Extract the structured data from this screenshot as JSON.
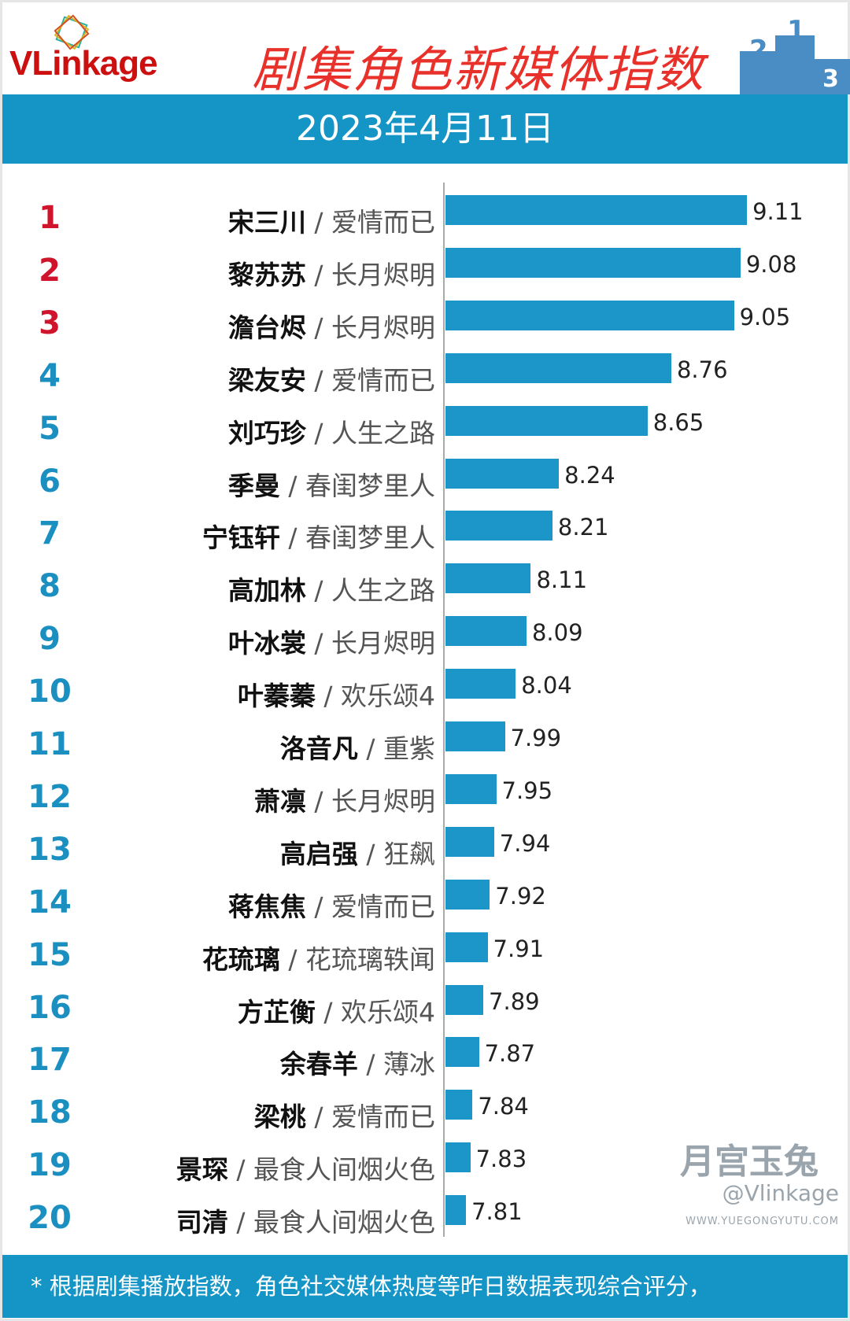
{
  "header": {
    "logo": "VLinkage",
    "title": "剧集角色新媒体指数",
    "date": "2023年4月11日"
  },
  "colors": {
    "bar": "#1c96c8",
    "rank_top": "#d0142b",
    "rank_other": "#1a8fc0",
    "band": "#1595c6"
  },
  "chart_data": {
    "type": "bar",
    "orientation": "horizontal",
    "title": "剧集角色新媒体指数",
    "subtitle": "2023年4月11日",
    "items": [
      {
        "rank": "1",
        "name": "宋三川",
        "show": "爱情而已",
        "value": 9.11
      },
      {
        "rank": "2",
        "name": "黎苏苏",
        "show": "长月烬明",
        "value": 9.08
      },
      {
        "rank": "3",
        "name": "澹台烬",
        "show": "长月烬明",
        "value": 9.05
      },
      {
        "rank": "4",
        "name": "梁友安",
        "show": "爱情而已",
        "value": 8.76
      },
      {
        "rank": "5",
        "name": "刘巧珍",
        "show": "人生之路",
        "value": 8.65
      },
      {
        "rank": "6",
        "name": "季曼",
        "show": "春闺梦里人",
        "value": 8.24
      },
      {
        "rank": "7",
        "name": "宁钰轩",
        "show": "春闺梦里人",
        "value": 8.21
      },
      {
        "rank": "8",
        "name": "高加林",
        "show": "人生之路",
        "value": 8.11
      },
      {
        "rank": "9",
        "name": "叶冰裳",
        "show": "长月烬明",
        "value": 8.09
      },
      {
        "rank": "10",
        "name": "叶蓁蓁",
        "show": "欢乐颂4",
        "value": 8.04
      },
      {
        "rank": "11",
        "name": "洛音凡",
        "show": "重紫",
        "value": 7.99
      },
      {
        "rank": "12",
        "name": "萧凛",
        "show": "长月烬明",
        "value": 7.95
      },
      {
        "rank": "13",
        "name": "高启强",
        "show": "狂飙",
        "value": 7.94
      },
      {
        "rank": "14",
        "name": "蒋焦焦",
        "show": "爱情而已",
        "value": 7.92
      },
      {
        "rank": "15",
        "name": "花琉璃",
        "show": "花琉璃轶闻",
        "value": 7.91
      },
      {
        "rank": "16",
        "name": "方芷衡",
        "show": "欢乐颂4",
        "value": 7.89
      },
      {
        "rank": "17",
        "name": "余春羊",
        "show": "薄冰",
        "value": 7.87
      },
      {
        "rank": "18",
        "name": "梁桃",
        "show": "爱情而已",
        "value": 7.84
      },
      {
        "rank": "19",
        "name": "景琛",
        "show": "最食人间烟火色",
        "value": 7.83
      },
      {
        "rank": "20",
        "name": "司清",
        "show": "最食人间烟火色",
        "value": 7.81
      }
    ]
  },
  "footer": {
    "note": "* 根据剧集播放指数，角色社交媒体热度等昨日数据表现综合评分，"
  },
  "watermark": {
    "brand": "月宫玉兔",
    "handle": "@Vlinkage",
    "url": "WWW.YUEGONGYUTU.COM"
  }
}
